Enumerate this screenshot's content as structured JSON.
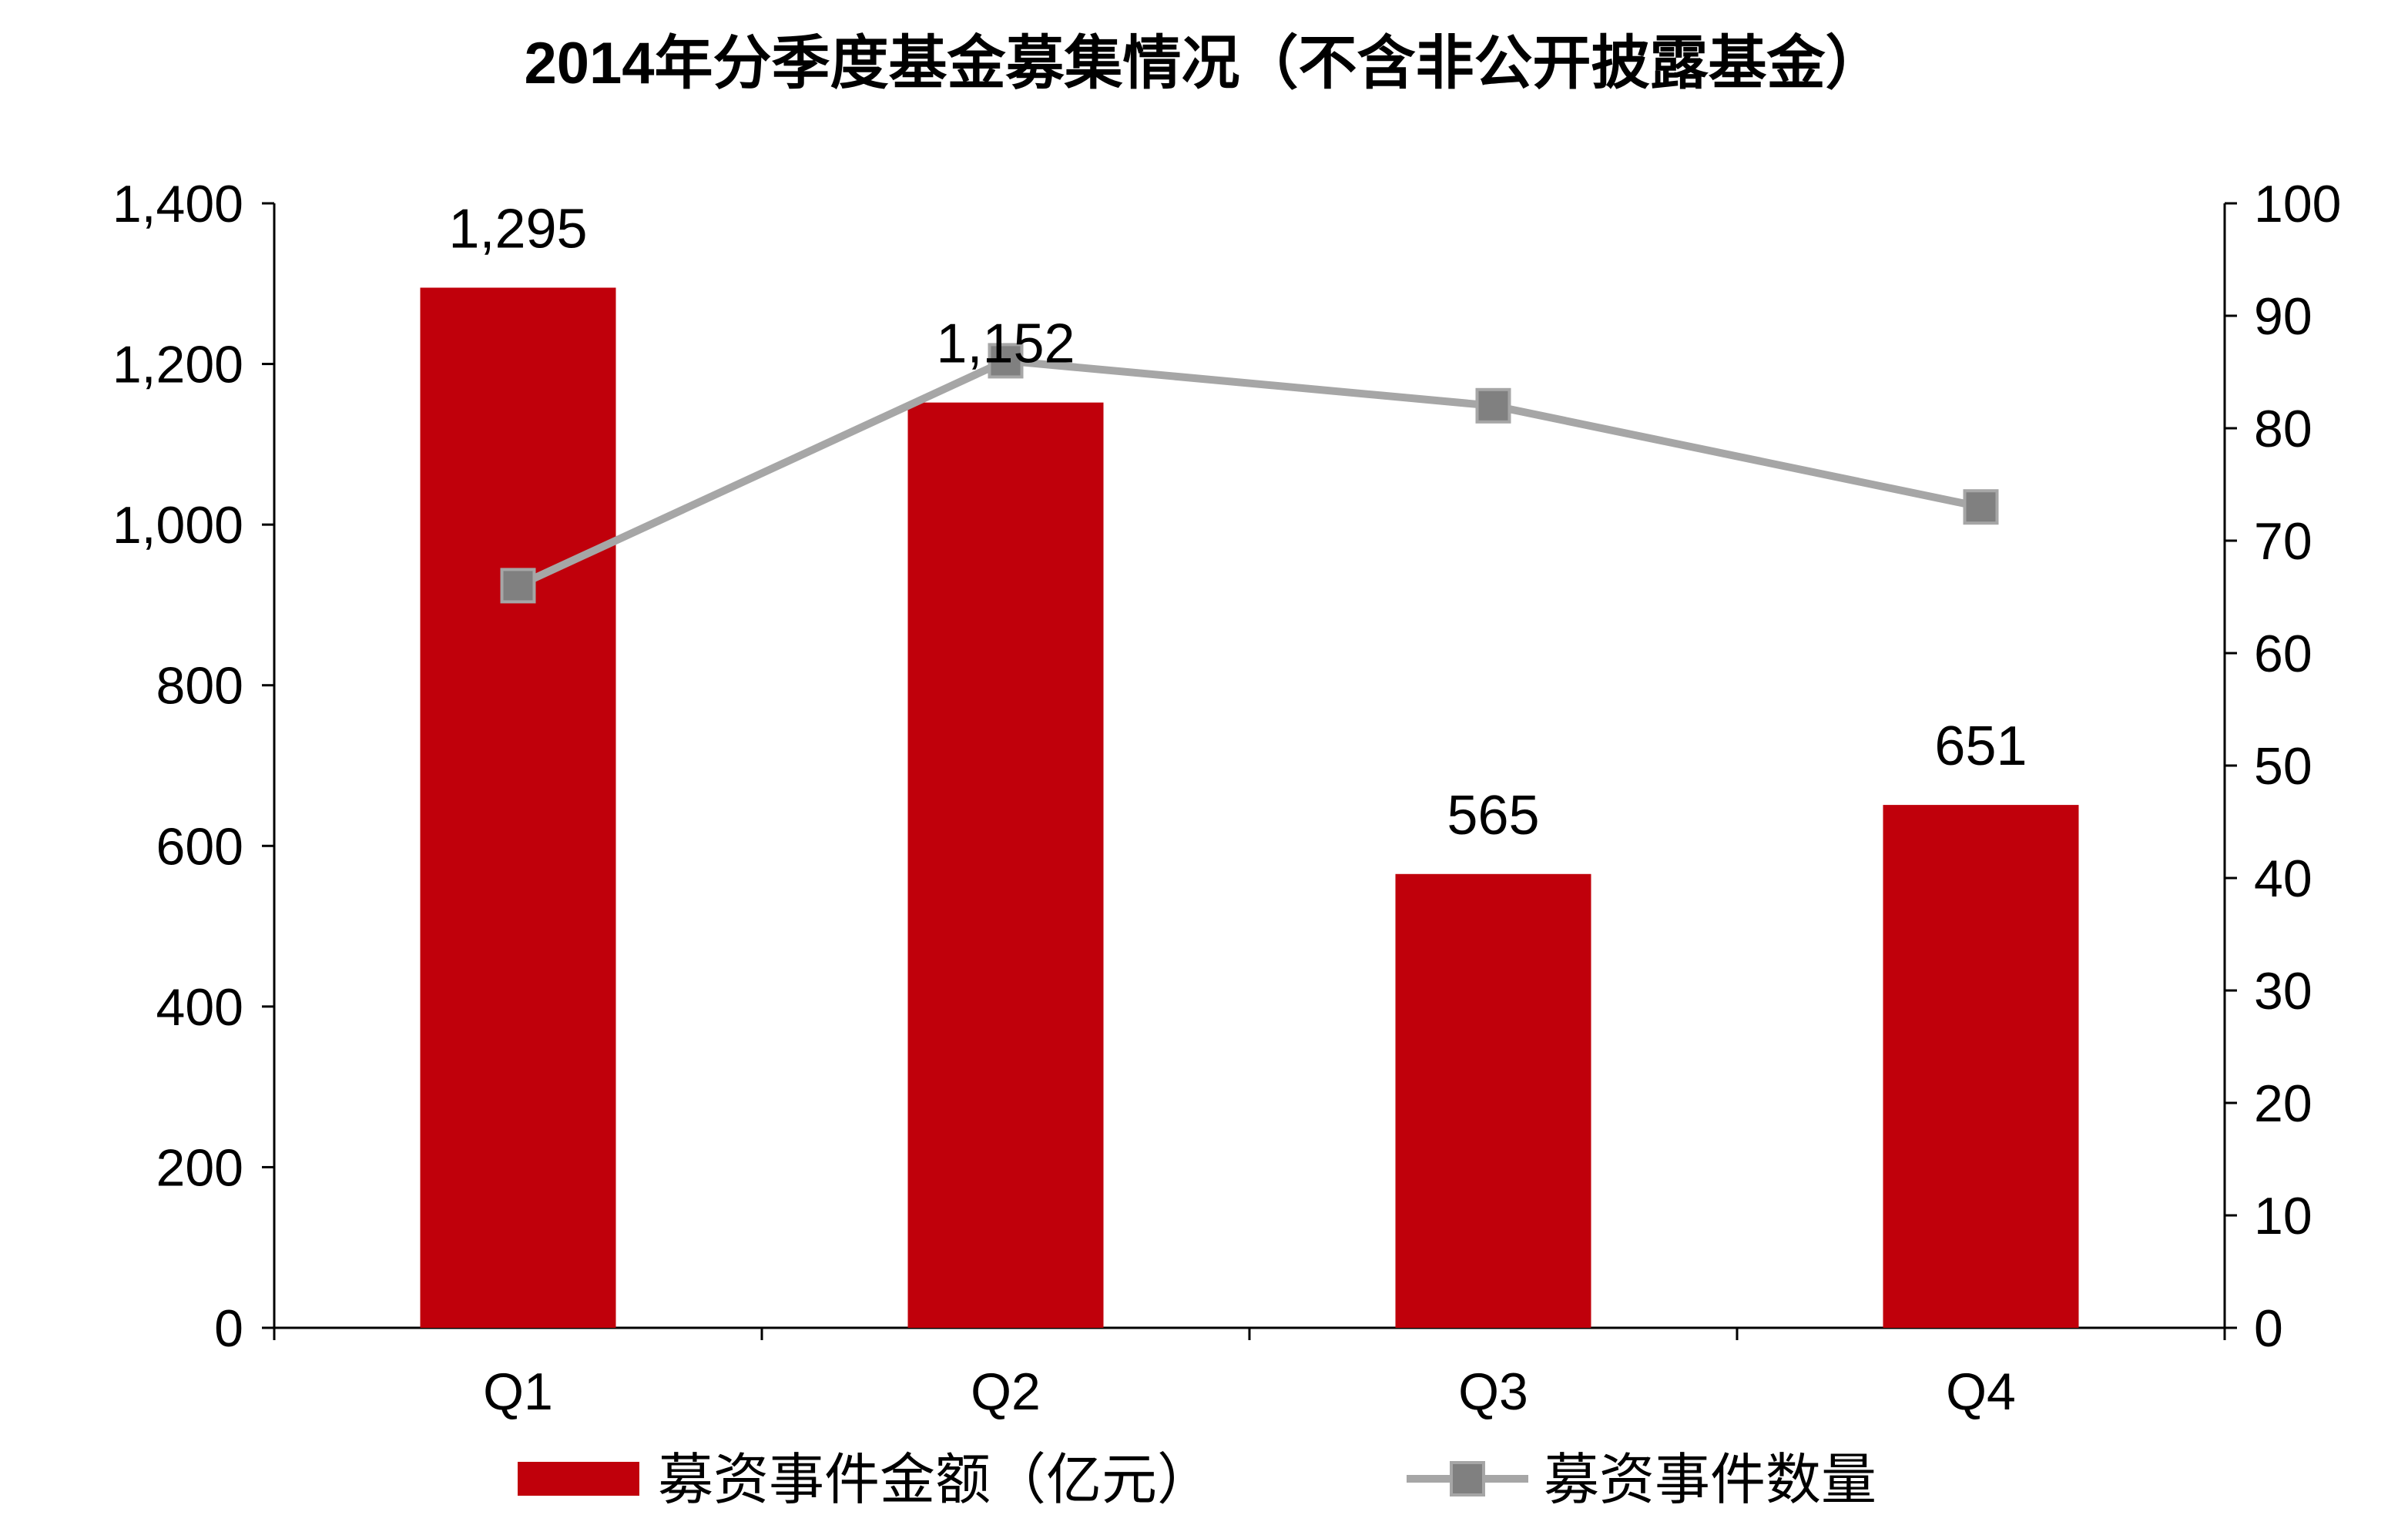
{
  "chart_data": {
    "type": "bar",
    "title": "2014年分季度基金募集情况（不含非公开披露基金）",
    "categories": [
      "Q1",
      "Q2",
      "Q3",
      "Q4"
    ],
    "series": [
      {
        "name": "募资事件金额（亿元）",
        "type": "bar",
        "axis": "left",
        "values": [
          1295,
          1152,
          565,
          651
        ],
        "data_labels": [
          "1,295",
          "1,152",
          "565",
          "651"
        ],
        "color": "#C0000B"
      },
      {
        "name": "募资事件数量",
        "type": "line",
        "axis": "right",
        "values": [
          66,
          86,
          82,
          73
        ],
        "color": "#A6A6A6",
        "marker_color": "#808080"
      }
    ],
    "y_left": {
      "range": [
        0,
        1400
      ],
      "ticks": [
        0,
        200,
        400,
        600,
        800,
        1000,
        1200,
        1400
      ],
      "tick_labels": [
        "0",
        "200",
        "400",
        "600",
        "800",
        "1,000",
        "1,200",
        "1,400"
      ]
    },
    "y_right": {
      "range": [
        0,
        100
      ],
      "ticks": [
        0,
        10,
        20,
        30,
        40,
        50,
        60,
        70,
        80,
        90,
        100
      ],
      "tick_labels": [
        "0",
        "10",
        "20",
        "30",
        "40",
        "50",
        "60",
        "70",
        "80",
        "90",
        "100"
      ]
    },
    "grid": false,
    "legend": "bottom"
  }
}
